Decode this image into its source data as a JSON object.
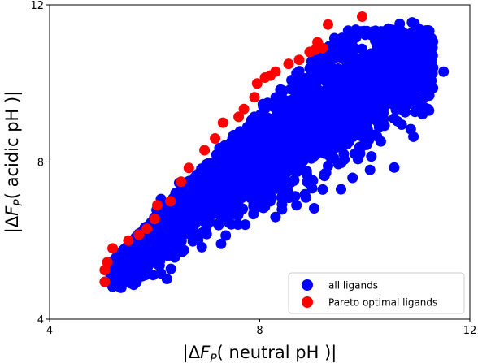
{
  "chart_data": {
    "type": "scatter",
    "xlabel": "|ΔF_P( neutral pH )|",
    "ylabel": "|ΔF_P( acidic pH )|",
    "xlim": [
      4,
      12
    ],
    "ylim": [
      4,
      12
    ],
    "xticks": [
      4,
      8,
      12
    ],
    "yticks": [
      4,
      8,
      12
    ],
    "grid": false,
    "legend_position": "bottom-right",
    "series": [
      {
        "name": "all ligands",
        "color": "#0000ff",
        "cloud": {
          "approximate_trend": "y ≈ 0.87·x + 1.1",
          "x_range": [
            5.1,
            11.5
          ],
          "y_range": [
            4.8,
            11.5
          ],
          "outliers": [
            [
              11.2,
              11.2
            ],
            [
              11.5,
              10.3
            ],
            [
              11.3,
              10.4
            ],
            [
              11.1,
              10.9
            ],
            [
              10.1,
              7.8
            ],
            [
              9.2,
              7.3
            ],
            [
              8.7,
              6.9
            ],
            [
              8.3,
              6.6
            ],
            [
              9.4,
              8.6
            ]
          ]
        }
      },
      {
        "name": "Pareto optimal ligands",
        "color": "#ff0000",
        "points": [
          [
            5.05,
            4.95
          ],
          [
            5.05,
            5.25
          ],
          [
            5.1,
            5.45
          ],
          [
            5.2,
            5.8
          ],
          [
            5.5,
            6.0
          ],
          [
            5.7,
            6.15
          ],
          [
            5.85,
            6.3
          ],
          [
            6.0,
            6.55
          ],
          [
            6.05,
            6.9
          ],
          [
            6.3,
            7.0
          ],
          [
            6.5,
            7.5
          ],
          [
            6.65,
            7.85
          ],
          [
            6.95,
            8.3
          ],
          [
            7.15,
            8.6
          ],
          [
            7.3,
            9.0
          ],
          [
            7.6,
            9.15
          ],
          [
            7.7,
            9.35
          ],
          [
            7.9,
            9.65
          ],
          [
            7.95,
            10.0
          ],
          [
            8.1,
            10.15
          ],
          [
            8.2,
            10.2
          ],
          [
            8.3,
            10.3
          ],
          [
            8.55,
            10.5
          ],
          [
            8.75,
            10.6
          ],
          [
            8.95,
            10.8
          ],
          [
            9.05,
            10.85
          ],
          [
            9.2,
            10.9
          ],
          [
            9.1,
            11.05
          ],
          [
            9.3,
            11.5
          ],
          [
            9.95,
            11.7
          ]
        ]
      }
    ]
  }
}
